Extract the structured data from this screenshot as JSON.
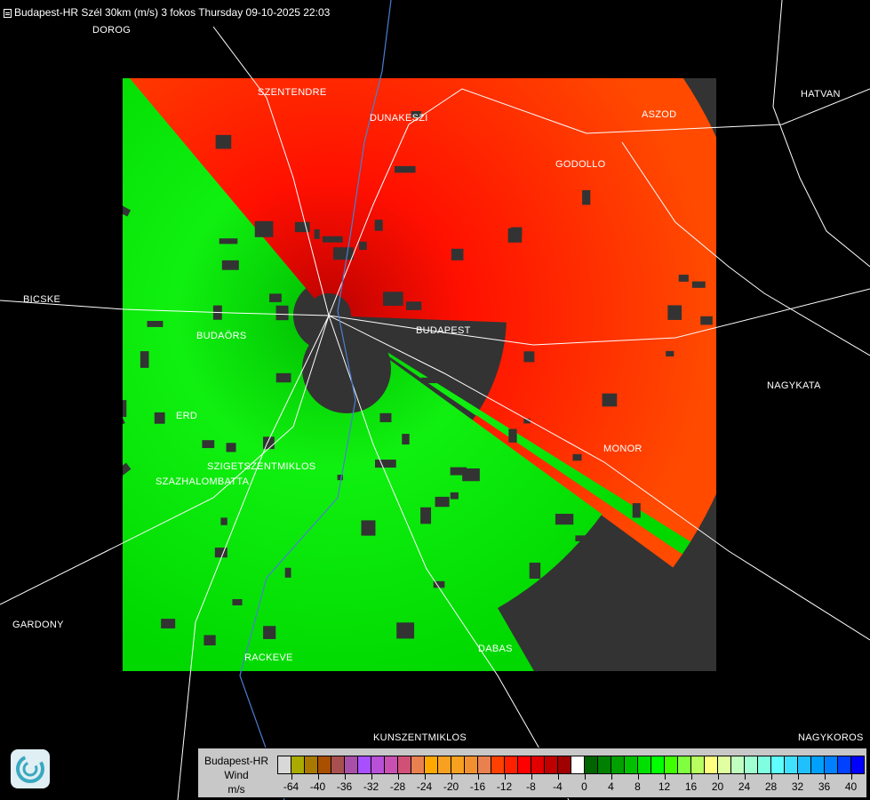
{
  "title": "Budapest-HR Szél 30km (m/s) 3 fokos Thursday 09-10-2025 22:03",
  "cities": [
    {
      "name": "DOROG"
    },
    {
      "name": "SZENTENDRE"
    },
    {
      "name": "DUNAKESZI"
    },
    {
      "name": "ASZOD"
    },
    {
      "name": "HATVAN"
    },
    {
      "name": "GODOLLO"
    },
    {
      "name": "BICSKE"
    },
    {
      "name": "BUDAÖRS"
    },
    {
      "name": "BUDAPEST"
    },
    {
      "name": "NAGYKATA"
    },
    {
      "name": "ERD"
    },
    {
      "name": "SZIGETSZENTMIKLOS"
    },
    {
      "name": "SZAZHALOMBATTA"
    },
    {
      "name": "MONOR"
    },
    {
      "name": "GARDONY"
    },
    {
      "name": "RACKEVE"
    },
    {
      "name": "DABAS"
    },
    {
      "name": "KUNSZENTMIKLOS"
    },
    {
      "name": "NAGYKOROS"
    }
  ],
  "legend": {
    "station": "Budapest-HR",
    "quantity": "Wind",
    "unit": "m/s",
    "colors": [
      "#d8d8d8",
      "#aaaa00",
      "#a87800",
      "#a85000",
      "#a85050",
      "#a850a8",
      "#a850ff",
      "#b850d8",
      "#c850b0",
      "#d05078",
      "#e88050",
      "#ffa800",
      "#f8a020",
      "#f8a020",
      "#f09030",
      "#e88050",
      "#ff4000",
      "#ff2000",
      "#ff0000",
      "#e00000",
      "#c00000",
      "#a00000",
      "#ffffff",
      "#006400",
      "#008000",
      "#00a000",
      "#00c000",
      "#00e000",
      "#00ff00",
      "#40ff00",
      "#80ff40",
      "#b8ff60",
      "#ffff80",
      "#e0ffa0",
      "#c0ffc0",
      "#a0ffd0",
      "#80ffe0",
      "#60ffff",
      "#40e0ff",
      "#20c0ff",
      "#00a0ff",
      "#0080ff",
      "#0040ff",
      "#0000ff"
    ],
    "ticks": [
      "-64",
      "-40",
      "-36",
      "-32",
      "-28",
      "-24",
      "-20",
      "-16",
      "-12",
      "-8",
      "-4",
      "0",
      "4",
      "8",
      "12",
      "16",
      "20",
      "24",
      "28",
      "32",
      "36",
      "40"
    ]
  },
  "colors": {
    "inbound_red": "#ff3000",
    "outbound_green": "#00ff00",
    "no_echo": "#333333",
    "roads": "#ffffff",
    "rivers": "#4a7fd0"
  },
  "logo_icon": "radar-logo-icon"
}
